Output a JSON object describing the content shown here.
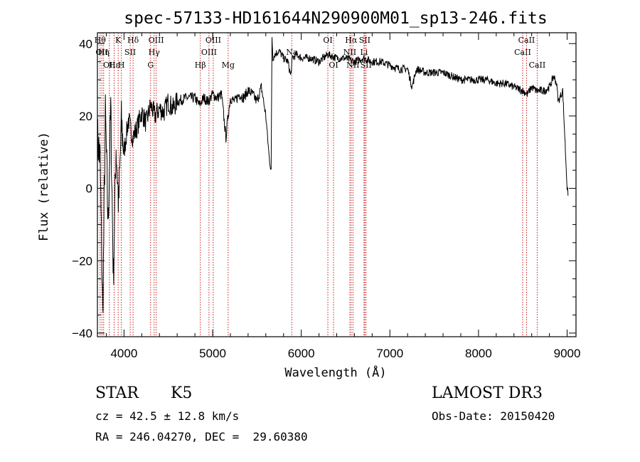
{
  "chart_data": {
    "type": "line",
    "title": "spec-57133-HD161644N290900M01_sp13-246.fits",
    "xlabel": "Wavelength (Å)",
    "ylabel": "Flux (relative)",
    "xlim": [
      3700,
      9100
    ],
    "ylim": [
      -41,
      43
    ],
    "x_ticks": [
      4000,
      5000,
      6000,
      7000,
      8000,
      9000
    ],
    "x_tick_labels": [
      "4000",
      "5000",
      "6000",
      "7000",
      "8000",
      "9000"
    ],
    "y_ticks": [
      -40,
      -20,
      0,
      20,
      40
    ],
    "y_tick_labels": [
      "−40",
      "−20",
      "0",
      "20",
      "40"
    ],
    "series": [
      {
        "name": "flux",
        "x": [
          3700,
          3730,
          3760,
          3790,
          3820,
          3850,
          3880,
          3910,
          3940,
          3970,
          4000,
          4050,
          4100,
          4150,
          4200,
          4250,
          4300,
          4350,
          4400,
          4450,
          4500,
          4550,
          4600,
          4700,
          4800,
          4850,
          4900,
          4950,
          5000,
          5050,
          5100,
          5150,
          5170,
          5200,
          5250,
          5300,
          5350,
          5400,
          5450,
          5500,
          5550,
          5600,
          5640,
          5660,
          5670,
          5680,
          5700,
          5750,
          5800,
          5850,
          5880,
          5900,
          5950,
          6000,
          6100,
          6200,
          6300,
          6400,
          6500,
          6600,
          6700,
          6800,
          6900,
          7000,
          7100,
          7200,
          7250,
          7300,
          7400,
          7500,
          7600,
          7700,
          7800,
          7900,
          8000,
          8100,
          8200,
          8300,
          8400,
          8500,
          8550,
          8600,
          8650,
          8700,
          8750,
          8800,
          8850,
          8880,
          8900,
          8950,
          9000,
          9010
        ],
        "y": [
          14,
          8,
          -35,
          20,
          -10,
          22,
          -25,
          12,
          -5,
          18,
          10,
          19,
          14,
          17,
          21,
          18,
          23,
          20,
          22,
          21,
          24,
          22,
          24,
          25,
          25,
          23,
          25,
          24,
          26,
          25,
          26,
          14,
          19,
          25,
          24,
          26,
          25,
          27,
          26,
          24,
          28,
          20,
          8,
          5,
          42,
          36,
          37,
          38,
          36,
          35,
          31,
          36,
          37,
          36,
          36,
          35,
          37,
          36,
          36,
          35,
          36,
          35,
          35,
          34,
          33,
          33,
          28,
          33,
          32,
          32,
          32,
          31,
          30,
          30,
          30,
          30,
          29,
          29,
          28,
          27,
          26,
          28,
          27,
          27,
          27,
          28,
          31,
          29,
          24,
          27,
          0,
          -2
        ]
      }
    ],
    "lines": [
      {
        "wl": 3730,
        "label": "Hθ",
        "row": 0
      },
      {
        "wl": 3750,
        "label": "OII",
        "row": 1
      },
      {
        "wl": 3770,
        "label": "Hη",
        "row": 1
      },
      {
        "wl": 3835,
        "label": "OII",
        "row": 2
      },
      {
        "wl": 3889,
        "label": "Hε",
        "row": 2
      },
      {
        "wl": 3934,
        "label": "K",
        "row": 0
      },
      {
        "wl": 3970,
        "label": "H",
        "row": 2
      },
      {
        "wl": 4070,
        "label": "SII",
        "row": 1
      },
      {
        "wl": 4102,
        "label": "Hδ",
        "row": 0
      },
      {
        "wl": 4300,
        "label": "G",
        "row": 2
      },
      {
        "wl": 4340,
        "label": "Hγ",
        "row": 1
      },
      {
        "wl": 4363,
        "label": "OIII",
        "row": 0
      },
      {
        "wl": 4861,
        "label": "Hβ",
        "row": 2
      },
      {
        "wl": 4959,
        "label": "OIII",
        "row": 1
      },
      {
        "wl": 5007,
        "label": "OIII",
        "row": 0
      },
      {
        "wl": 5175,
        "label": "Mg",
        "row": 2
      },
      {
        "wl": 5893,
        "label": "Na",
        "row": 1
      },
      {
        "wl": 6300,
        "label": "OI",
        "row": 0
      },
      {
        "wl": 6364,
        "label": "OI",
        "row": 2
      },
      {
        "wl": 6548,
        "label": "NII",
        "row": 1
      },
      {
        "wl": 6563,
        "label": "Hα",
        "row": 0
      },
      {
        "wl": 6583,
        "label": "NII",
        "row": 2
      },
      {
        "wl": 6708,
        "label": "Li",
        "row": 1
      },
      {
        "wl": 6716,
        "label": "SII",
        "row": 0
      },
      {
        "wl": 6731,
        "label": "SII",
        "row": 2
      },
      {
        "wl": 8498,
        "label": "CaII",
        "row": 1
      },
      {
        "wl": 8542,
        "label": "CaII",
        "row": 0
      },
      {
        "wl": 8662,
        "label": "CaII",
        "row": 2
      }
    ]
  },
  "info": {
    "object_class": "STAR",
    "subclass": "K5",
    "survey": "LAMOST DR3",
    "cz": "cz = 42.5 ± 12.8 km/s",
    "obs_date": "Obs-Date: 20150420",
    "coords": "RA = 246.04270, DEC =  29.60380"
  },
  "colors": {
    "spectrum": "#000000",
    "line_marker": "#c00000",
    "axes": "#000000"
  }
}
